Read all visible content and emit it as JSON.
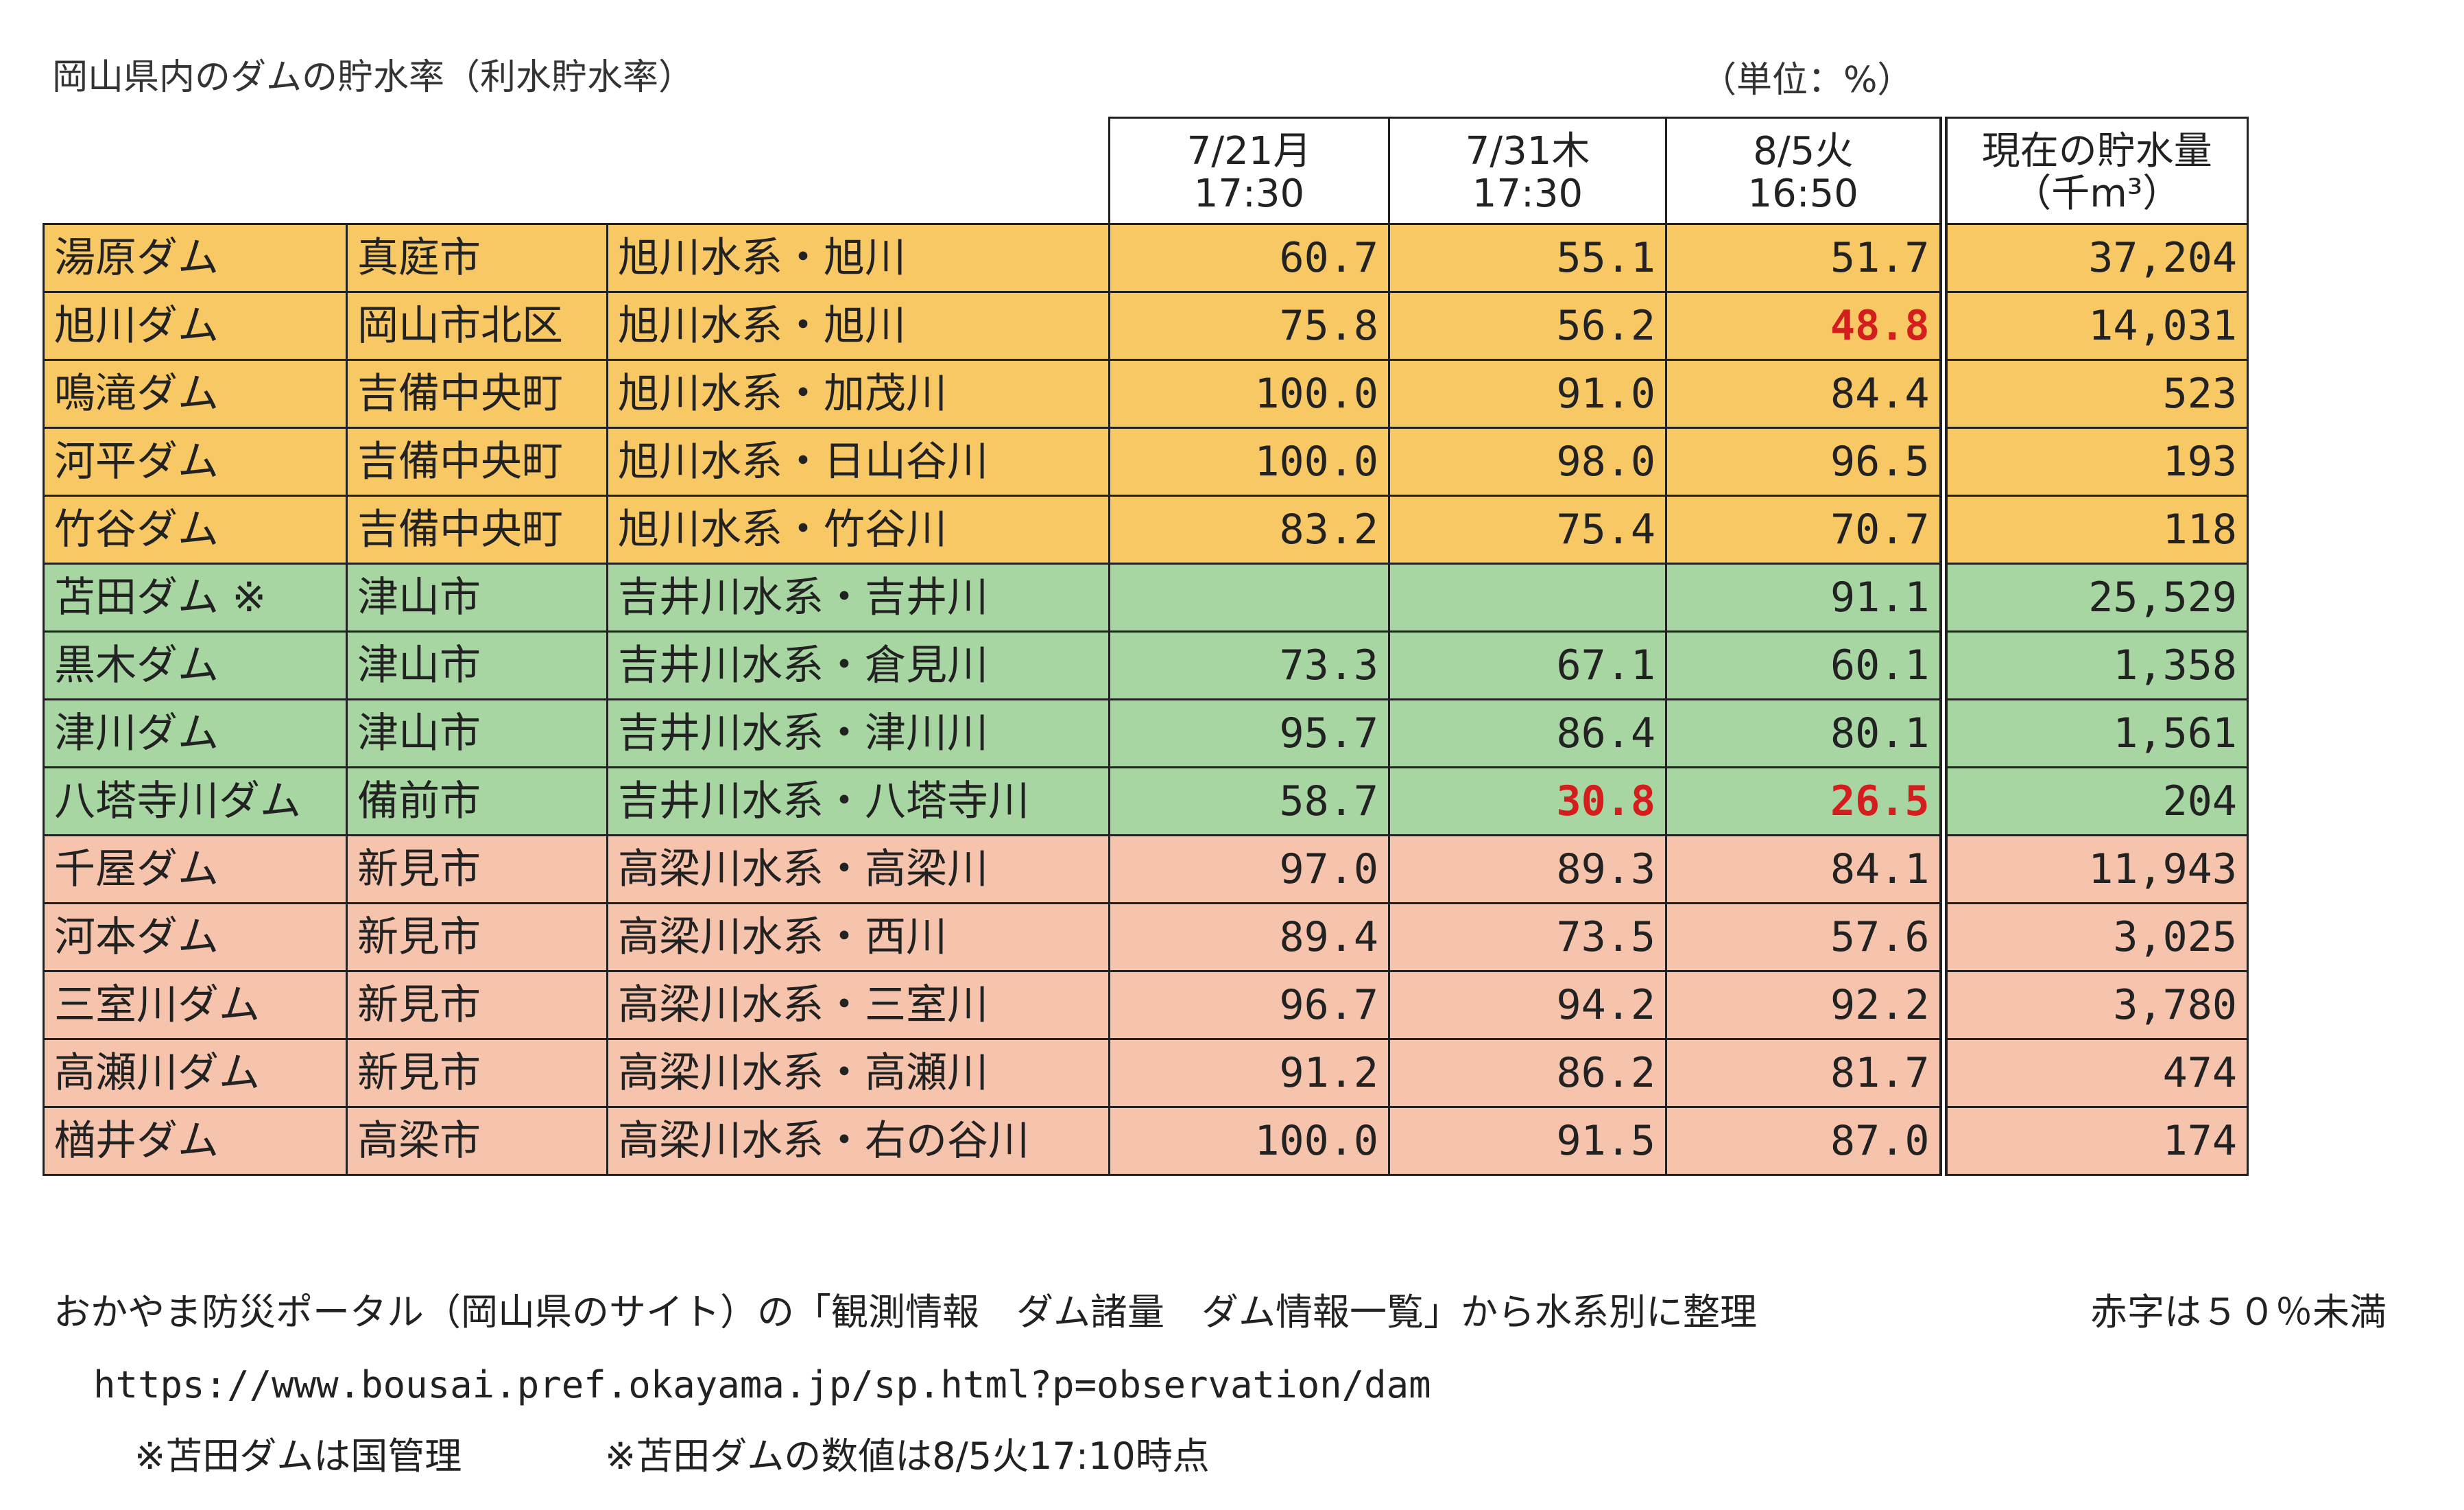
{
  "title": "岡山県内のダムの貯水率（利水貯水率）",
  "unit_label": "（単位：%）",
  "headers": {
    "col1": [
      "7/21月",
      "17:30"
    ],
    "col2": [
      "7/31木",
      "17:30"
    ],
    "col3": [
      "8/5火",
      "16:50"
    ],
    "col4": [
      "現在の貯水量",
      "（千m³）"
    ]
  },
  "groups": {
    "asahi": "#f8c865",
    "yoshii": "#a7d6a2",
    "takahashi": "#f6c4ad",
    "red_text": "#d41e1e"
  },
  "rows": [
    {
      "dam": "湯原ダム",
      "city": "真庭市",
      "river": "旭川水系・旭川",
      "v1": "60.7",
      "v2": "55.1",
      "v3": "51.7",
      "vol": "37,204",
      "group": "asahi"
    },
    {
      "dam": "旭川ダム",
      "city": "岡山市北区",
      "river": "旭川水系・旭川",
      "v1": "75.8",
      "v2": "56.2",
      "v3": "48.8",
      "vol": "14,031",
      "group": "asahi"
    },
    {
      "dam": "鳴滝ダム",
      "city": "吉備中央町",
      "river": "旭川水系・加茂川",
      "v1": "100.0",
      "v2": "91.0",
      "v3": "84.4",
      "vol": "523",
      "group": "asahi"
    },
    {
      "dam": "河平ダム",
      "city": "吉備中央町",
      "river": "旭川水系・日山谷川",
      "v1": "100.0",
      "v2": "98.0",
      "v3": "96.5",
      "vol": "193",
      "group": "asahi"
    },
    {
      "dam": "竹谷ダム",
      "city": "吉備中央町",
      "river": "旭川水系・竹谷川",
      "v1": "83.2",
      "v2": "75.4",
      "v3": "70.7",
      "vol": "118",
      "group": "asahi"
    },
    {
      "dam": "苫田ダム ※",
      "city": "津山市",
      "river": "吉井川水系・吉井川",
      "v1": "",
      "v2": "",
      "v3": "91.1",
      "vol": "25,529",
      "group": "yoshii"
    },
    {
      "dam": "黒木ダム",
      "city": "津山市",
      "river": "吉井川水系・倉見川",
      "v1": "73.3",
      "v2": "67.1",
      "v3": "60.1",
      "vol": "1,358",
      "group": "yoshii"
    },
    {
      "dam": "津川ダム",
      "city": "津山市",
      "river": "吉井川水系・津川川",
      "v1": "95.7",
      "v2": "86.4",
      "v3": "80.1",
      "vol": "1,561",
      "group": "yoshii"
    },
    {
      "dam": "八塔寺川ダム",
      "city": "備前市",
      "river": "吉井川水系・八塔寺川",
      "v1": "58.7",
      "v2": "30.8",
      "v3": "26.5",
      "vol": "204",
      "group": "yoshii"
    },
    {
      "dam": "千屋ダム",
      "city": "新見市",
      "river": "高梁川水系・高梁川",
      "v1": "97.0",
      "v2": "89.3",
      "v3": "84.1",
      "vol": "11,943",
      "group": "takahashi"
    },
    {
      "dam": "河本ダム",
      "city": "新見市",
      "river": "高梁川水系・西川",
      "v1": "89.4",
      "v2": "73.5",
      "v3": "57.6",
      "vol": "3,025",
      "group": "takahashi"
    },
    {
      "dam": "三室川ダム",
      "city": "新見市",
      "river": "高梁川水系・三室川",
      "v1": "96.7",
      "v2": "94.2",
      "v3": "92.2",
      "vol": "3,780",
      "group": "takahashi"
    },
    {
      "dam": "高瀬川ダム",
      "city": "新見市",
      "river": "高梁川水系・高瀬川",
      "v1": "91.2",
      "v2": "86.2",
      "v3": "81.7",
      "vol": "474",
      "group": "takahashi"
    },
    {
      "dam": "楢井ダム",
      "city": "高梁市",
      "river": "高梁川水系・右の谷川",
      "v1": "100.0",
      "v2": "91.5",
      "v3": "87.0",
      "vol": "174",
      "group": "takahashi"
    }
  ],
  "notes": {
    "source": "おかやま防災ポータル（岡山県のサイト）の「観測情報　ダム諸量　ダム情報一覧」から水系別に整理",
    "red_note": "赤字は５０％未満",
    "url": "https://www.bousai.pref.okayama.jp/sp.html?p=observation/dam",
    "tomata_managed": "※苫田ダムは国管理",
    "tomata_time": "※苫田ダムの数値は8/5火17:10時点"
  }
}
